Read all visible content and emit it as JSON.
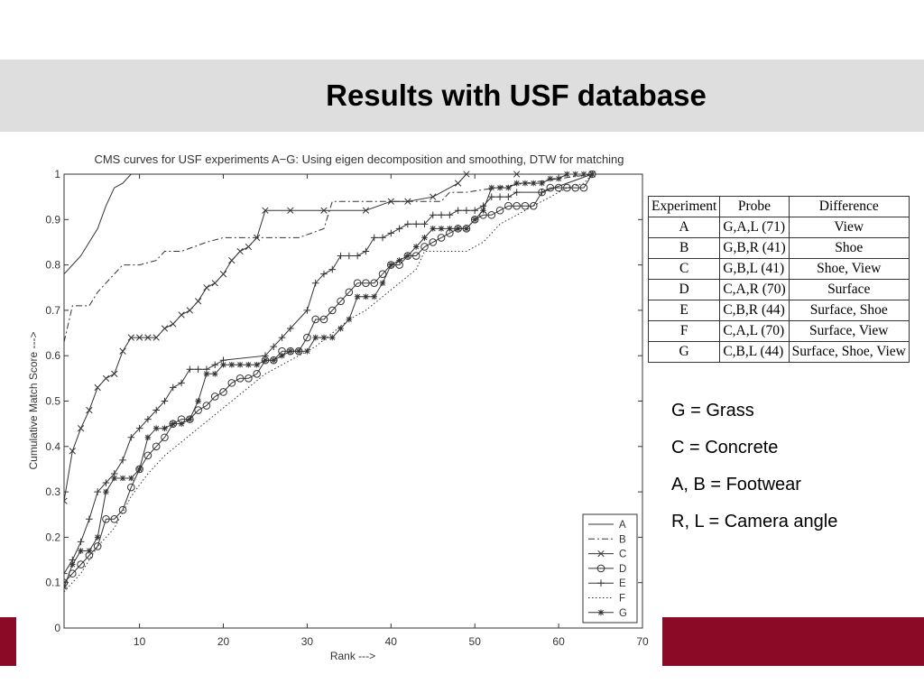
{
  "slide": {
    "title": "Results with USF database",
    "colors": {
      "band": "#dedede",
      "accent": "#8b0a25"
    }
  },
  "chart_data": {
    "type": "line",
    "title": "CMS curves for USF experiments A−G: Using eigen decomposition and smoothing, DTW for matching",
    "xlabel": "Rank --->",
    "ylabel": "Cumulative Match Score --->",
    "xlim": [
      1,
      70
    ],
    "ylim": [
      0,
      1
    ],
    "x_ticks": [
      10,
      20,
      30,
      40,
      50,
      60,
      70
    ],
    "y_ticks": [
      0,
      0.1,
      0.2,
      0.3,
      0.4,
      0.5,
      0.6,
      0.7,
      0.8,
      0.9,
      1
    ],
    "grid": false,
    "legend_position": "bottom-right",
    "series": [
      {
        "name": "A",
        "style": "solid",
        "marker": "",
        "x": [
          1,
          2,
          3,
          4,
          5,
          6,
          7,
          8,
          9,
          10,
          12,
          15,
          16,
          30,
          40,
          41,
          50,
          64
        ],
        "y": [
          0.78,
          0.8,
          0.82,
          0.85,
          0.88,
          0.93,
          0.97,
          0.98,
          1.0,
          1.0,
          1.0,
          1.0,
          1.0,
          1.0,
          1.0,
          1.0,
          1.0,
          1.0
        ]
      },
      {
        "name": "B",
        "style": "dashdot",
        "marker": "",
        "x": [
          1,
          2,
          3,
          4,
          5,
          6,
          7,
          8,
          9,
          10,
          12,
          13,
          15,
          18,
          20,
          25,
          29,
          32,
          33,
          40,
          46,
          47,
          49,
          56,
          64
        ],
        "y": [
          0.63,
          0.71,
          0.71,
          0.71,
          0.74,
          0.76,
          0.78,
          0.8,
          0.8,
          0.8,
          0.81,
          0.83,
          0.83,
          0.85,
          0.86,
          0.86,
          0.86,
          0.88,
          0.94,
          0.94,
          0.94,
          0.96,
          0.96,
          0.98,
          1.0
        ]
      },
      {
        "name": "C",
        "style": "solid",
        "marker": "x",
        "x": [
          1,
          2,
          3,
          4,
          5,
          6,
          7,
          8,
          9,
          10,
          11,
          12,
          13,
          14,
          15,
          16,
          17,
          18,
          19,
          20,
          21,
          22,
          23,
          24,
          25,
          28,
          32,
          37,
          40,
          42,
          45,
          48,
          49,
          55,
          64
        ],
        "y": [
          0.28,
          0.39,
          0.44,
          0.48,
          0.53,
          0.55,
          0.56,
          0.61,
          0.64,
          0.64,
          0.64,
          0.64,
          0.66,
          0.67,
          0.69,
          0.7,
          0.72,
          0.75,
          0.76,
          0.78,
          0.81,
          0.83,
          0.84,
          0.86,
          0.92,
          0.92,
          0.92,
          0.92,
          0.94,
          0.94,
          0.95,
          0.98,
          1.0,
          1.0,
          1.0
        ]
      },
      {
        "name": "D",
        "style": "solid",
        "marker": "o",
        "x": [
          1,
          2,
          3,
          4,
          5,
          6,
          7,
          8,
          9,
          10,
          11,
          12,
          13,
          14,
          15,
          16,
          17,
          18,
          19,
          20,
          21,
          22,
          23,
          24,
          25,
          26,
          27,
          28,
          29,
          30,
          31,
          32,
          33,
          34,
          35,
          36,
          37,
          38,
          39,
          40,
          41,
          42,
          43,
          44,
          45,
          46,
          47,
          48,
          49,
          50,
          51,
          52,
          53,
          54,
          55,
          56,
          57,
          58,
          59,
          60,
          61,
          62,
          63,
          64
        ],
        "y": [
          0.1,
          0.12,
          0.14,
          0.16,
          0.18,
          0.24,
          0.24,
          0.26,
          0.31,
          0.35,
          0.38,
          0.4,
          0.42,
          0.45,
          0.46,
          0.46,
          0.48,
          0.49,
          0.51,
          0.52,
          0.54,
          0.55,
          0.55,
          0.56,
          0.59,
          0.59,
          0.61,
          0.61,
          0.61,
          0.64,
          0.68,
          0.68,
          0.7,
          0.72,
          0.74,
          0.76,
          0.76,
          0.76,
          0.78,
          0.8,
          0.8,
          0.82,
          0.82,
          0.84,
          0.85,
          0.86,
          0.87,
          0.88,
          0.88,
          0.9,
          0.91,
          0.91,
          0.92,
          0.93,
          0.93,
          0.93,
          0.93,
          0.96,
          0.97,
          0.97,
          0.97,
          0.97,
          0.97,
          1.0
        ]
      },
      {
        "name": "E",
        "style": "solid",
        "marker": "+",
        "x": [
          1,
          2,
          3,
          4,
          5,
          6,
          7,
          8,
          9,
          10,
          11,
          12,
          13,
          14,
          15,
          16,
          17,
          18,
          19,
          20,
          25,
          26,
          27,
          28,
          30,
          31,
          32,
          33,
          34,
          35,
          36,
          37,
          38,
          39,
          40,
          41,
          42,
          43,
          44,
          45,
          46,
          47,
          48,
          49,
          50,
          51,
          52,
          53,
          54,
          55,
          58,
          64
        ],
        "y": [
          0.12,
          0.15,
          0.19,
          0.24,
          0.3,
          0.32,
          0.34,
          0.37,
          0.42,
          0.44,
          0.46,
          0.48,
          0.5,
          0.53,
          0.54,
          0.57,
          0.57,
          0.57,
          0.58,
          0.59,
          0.6,
          0.62,
          0.64,
          0.66,
          0.7,
          0.76,
          0.78,
          0.79,
          0.82,
          0.82,
          0.82,
          0.83,
          0.86,
          0.86,
          0.87,
          0.88,
          0.89,
          0.89,
          0.89,
          0.91,
          0.91,
          0.91,
          0.92,
          0.92,
          0.92,
          0.93,
          0.95,
          0.95,
          0.95,
          0.96,
          0.96,
          1.0
        ]
      },
      {
        "name": "F",
        "style": "dotted",
        "marker": "",
        "x": [
          1,
          3,
          5,
          7,
          9,
          11,
          13,
          15,
          17,
          19,
          21,
          23,
          25,
          27,
          29,
          31,
          33,
          35,
          37,
          39,
          41,
          43,
          44,
          49,
          51,
          53,
          55,
          57,
          59,
          61,
          63,
          64
        ],
        "y": [
          0.08,
          0.12,
          0.18,
          0.22,
          0.29,
          0.34,
          0.38,
          0.41,
          0.44,
          0.47,
          0.5,
          0.53,
          0.56,
          0.58,
          0.6,
          0.62,
          0.65,
          0.68,
          0.7,
          0.73,
          0.76,
          0.79,
          0.83,
          0.83,
          0.85,
          0.89,
          0.91,
          0.93,
          0.95,
          0.97,
          0.98,
          1.0
        ]
      },
      {
        "name": "G",
        "style": "solid",
        "marker": "*",
        "x": [
          1,
          2,
          3,
          4,
          5,
          6,
          7,
          8,
          9,
          10,
          11,
          12,
          13,
          14,
          15,
          16,
          17,
          18,
          19,
          20,
          21,
          22,
          23,
          24,
          25,
          26,
          27,
          28,
          29,
          30,
          31,
          32,
          33,
          34,
          35,
          36,
          37,
          38,
          39,
          40,
          41,
          42,
          43,
          44,
          45,
          46,
          47,
          48,
          49,
          50,
          51,
          52,
          53,
          54,
          55,
          56,
          57,
          58,
          59,
          60,
          61,
          62,
          63,
          64
        ],
        "y": [
          0.09,
          0.14,
          0.17,
          0.17,
          0.2,
          0.3,
          0.33,
          0.33,
          0.33,
          0.35,
          0.42,
          0.44,
          0.44,
          0.45,
          0.45,
          0.46,
          0.5,
          0.56,
          0.56,
          0.58,
          0.58,
          0.58,
          0.58,
          0.58,
          0.59,
          0.59,
          0.6,
          0.61,
          0.61,
          0.61,
          0.64,
          0.64,
          0.64,
          0.66,
          0.68,
          0.73,
          0.73,
          0.73,
          0.76,
          0.8,
          0.81,
          0.82,
          0.84,
          0.86,
          0.88,
          0.88,
          0.88,
          0.88,
          0.88,
          0.9,
          0.92,
          0.97,
          0.97,
          0.97,
          0.98,
          0.98,
          0.98,
          0.98,
          0.99,
          0.99,
          1.0,
          1.0,
          1.0,
          1.0
        ]
      }
    ]
  },
  "table": {
    "headers": [
      "Experiment",
      "Probe",
      "Difference"
    ],
    "rows": [
      [
        "A",
        "G,A,L (71)",
        "View"
      ],
      [
        "B",
        "G,B,R (41)",
        "Shoe"
      ],
      [
        "C",
        "G,B,L (41)",
        "Shoe, View"
      ],
      [
        "D",
        "C,A,R (70)",
        "Surface"
      ],
      [
        "E",
        "C,B,R (44)",
        "Surface, Shoe"
      ],
      [
        "F",
        "C,A,L (70)",
        "Surface, View"
      ],
      [
        "G",
        "C,B,L (44)",
        "Surface, Shoe, View"
      ]
    ]
  },
  "notes": [
    "G = Grass",
    "C = Concrete",
    "A, B = Footwear",
    "R, L = Camera angle"
  ]
}
